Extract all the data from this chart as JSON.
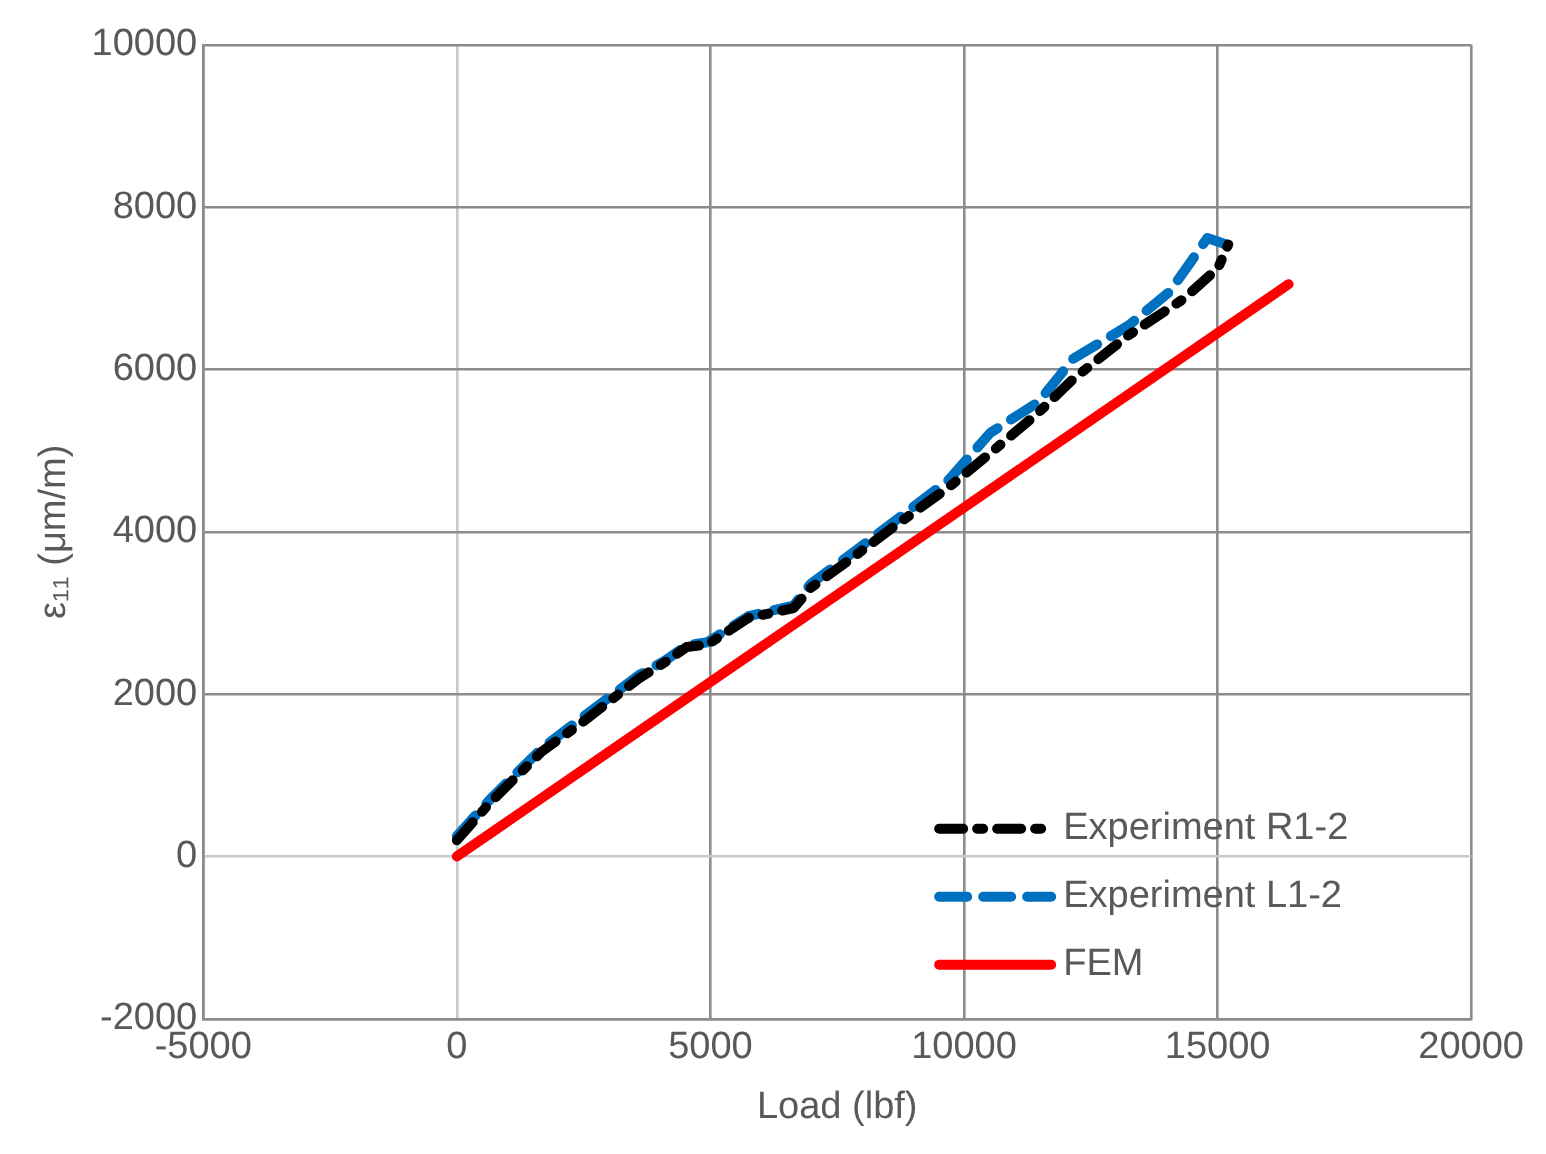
{
  "chart_data": {
    "type": "line",
    "xlabel": "Load (lbf)",
    "ylabel": "ε₁₁ (μm/m)",
    "xlim": [
      -5000,
      20000
    ],
    "xticks": [
      -5000,
      0,
      5000,
      10000,
      15000,
      20000
    ],
    "ylim": [
      -2000,
      10000
    ],
    "yticks": [
      -2000,
      0,
      2000,
      4000,
      6000,
      8000,
      10000
    ],
    "grid": true,
    "legend": "bottom right",
    "marker": "none",
    "series": [
      {
        "name": "Experiment R1-2",
        "color": "#000000",
        "line_style": "dashed",
        "x": [
          0,
          650,
          1670,
          2490,
          3580,
          4120,
          4530,
          4940,
          5750,
          6640,
          6980,
          7800,
          8610,
          9700,
          10520,
          11470,
          12150,
          13240,
          14330,
          15010,
          15210
        ],
        "values": [
          200,
          660,
          1290,
          1660,
          2190,
          2400,
          2580,
          2610,
          2940,
          3060,
          3310,
          3680,
          4060,
          4550,
          4970,
          5470,
          5880,
          6420,
          6870,
          7250,
          7540
        ]
      },
      {
        "name": "Experiment L1-2",
        "color": "#0070c0",
        "line_style": "dashed",
        "x": [
          0,
          650,
          1670,
          2490,
          3580,
          4120,
          4530,
          4940,
          5750,
          6640,
          6980,
          7800,
          8610,
          9700,
          10520,
          11470,
          12150,
          13240,
          14060,
          14800,
          15170
        ],
        "values": [
          250,
          700,
          1330,
          1720,
          2230,
          2420,
          2600,
          2640,
          2960,
          3090,
          3360,
          3740,
          4120,
          4640,
          5220,
          5600,
          6130,
          6540,
          6960,
          7620,
          7540
        ]
      },
      {
        "name": "FEM",
        "color": "#ff0000",
        "line_style": "solid",
        "x": [
          0,
          16400
        ],
        "values": [
          0,
          7050
        ]
      }
    ]
  }
}
